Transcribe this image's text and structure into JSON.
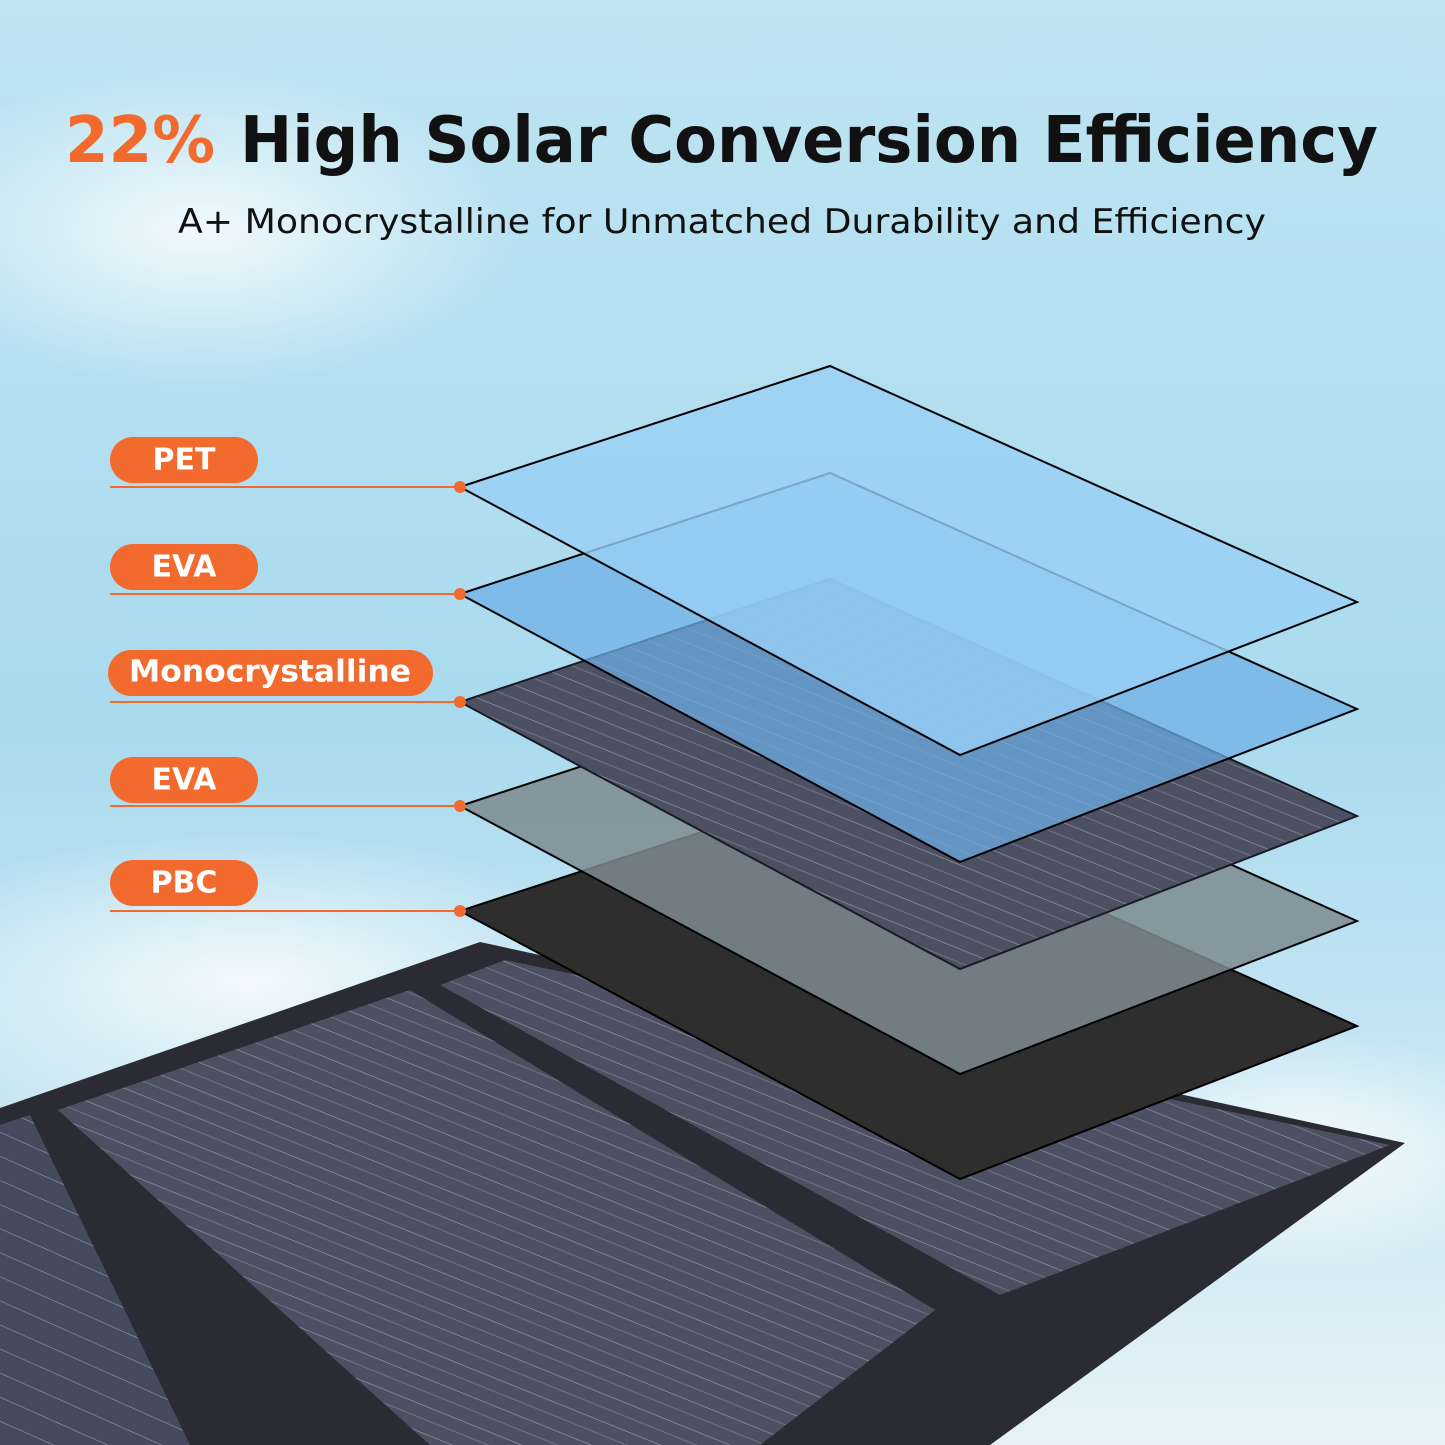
{
  "header": {
    "highlight": "22%",
    "title": "High Solar Conversion Efficiency",
    "subtitle": "A+ Monocrystalline for Unmatched Durability and Efficiency"
  },
  "layers": [
    {
      "label": "PET"
    },
    {
      "label": "EVA"
    },
    {
      "label": "Monocrystalline"
    },
    {
      "label": "EVA"
    },
    {
      "label": "PBC"
    }
  ]
}
